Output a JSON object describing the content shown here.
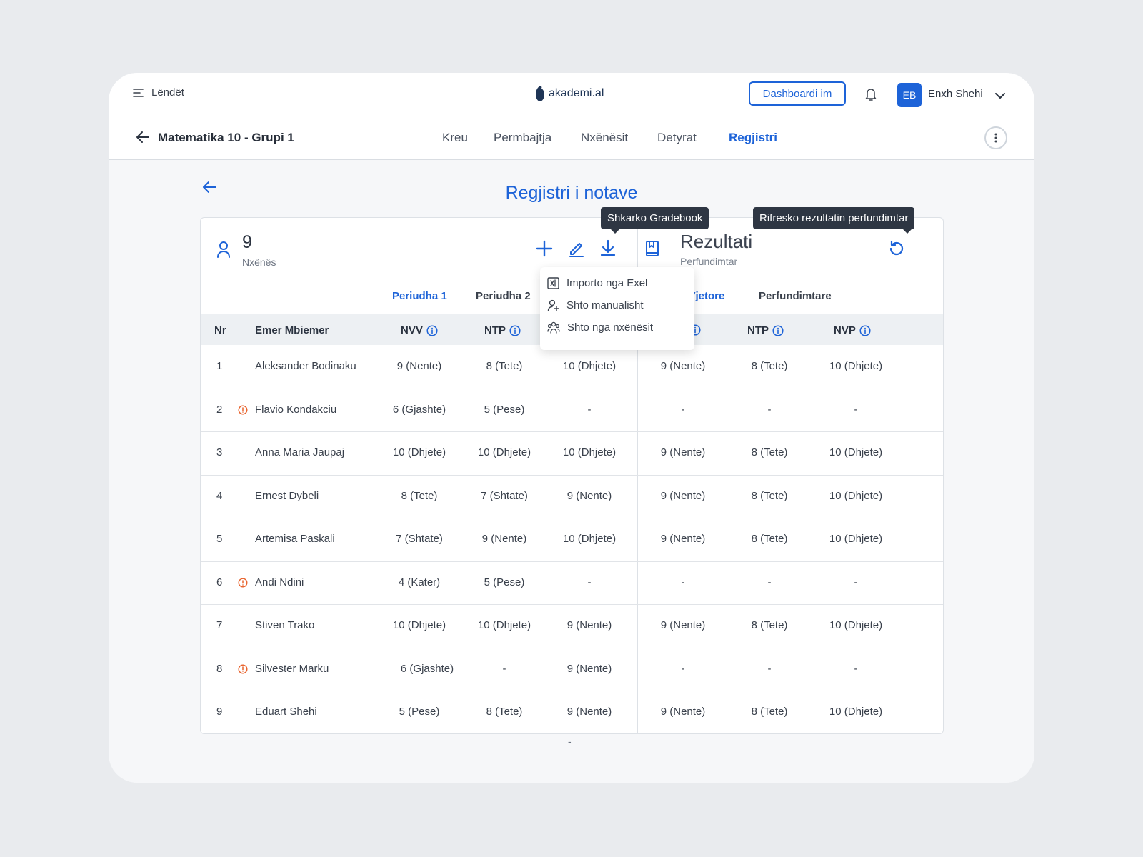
{
  "topbar": {
    "menu_label": "Lëndët",
    "logo_text": "akademi.al",
    "dashboard_button": "Dashboardi im",
    "avatar_initials": "EB",
    "user_name": "Enxh Shehi"
  },
  "subbar": {
    "course_title": "Matematika 10 - Grupi 1",
    "tabs": [
      "Kreu",
      "Permbajtja",
      "Nxënësit",
      "Detyrat",
      "Regjistri"
    ],
    "active_tab": "Regjistri"
  },
  "page": {
    "title": "Regjistri i notave"
  },
  "students_panel": {
    "count": "9",
    "count_label": "Nxënës"
  },
  "results_panel": {
    "title": "Rezultati",
    "subtitle": "Perfundimtar"
  },
  "tooltips": {
    "download": "Shkarko Gradebook",
    "refresh": "Rifresko rezultatin perfundimtar"
  },
  "add_menu": {
    "items": [
      "Importo nga Exel",
      "Shto manualisht",
      "Shto nga nxënësit"
    ]
  },
  "periods": {
    "p1": "Periudha 1",
    "p2": "Periudha 2",
    "annual_partial": "a Vjetore",
    "final": "Perfundimtare"
  },
  "headers": {
    "nr": "Nr",
    "name": "Emer Mbiemer",
    "nvv": "NVV",
    "ntp": "NTP",
    "ntp2": "NTP",
    "nvp": "NVP"
  },
  "rows": [
    {
      "nr": "1",
      "name": "Aleksander Bodinaku",
      "warn": false,
      "c": [
        "9 (Nente)",
        "8 (Tete)",
        "10 (Dhjete)",
        "9 (Nente)",
        "8 (Tete)",
        "10 (Dhjete)"
      ]
    },
    {
      "nr": "2",
      "name": "Flavio Kondakciu",
      "warn": true,
      "c": [
        "6 (Gjashte)",
        "5 (Pese)",
        "-",
        "-",
        "-",
        "-"
      ]
    },
    {
      "nr": "3",
      "name": "Anna Maria Jaupaj",
      "warn": false,
      "c": [
        "10 (Dhjete)",
        "10 (Dhjete)",
        "10 (Dhjete)",
        "9 (Nente)",
        "8 (Tete)",
        "10 (Dhjete)"
      ]
    },
    {
      "nr": "4",
      "name": "Ernest Dybeli",
      "warn": false,
      "c": [
        "8 (Tete)",
        "7 (Shtate)",
        "9 (Nente)",
        "9 (Nente)",
        "8 (Tete)",
        "10 (Dhjete)"
      ]
    },
    {
      "nr": "5",
      "name": "Artemisa Paskali",
      "warn": false,
      "c": [
        "7 (Shtate)",
        "9 (Nente)",
        "10 (Dhjete)",
        "9 (Nente)",
        "8 (Tete)",
        "10 (Dhjete)"
      ]
    },
    {
      "nr": "6",
      "name": "Andi Ndini",
      "warn": true,
      "c": [
        "4 (Kater)",
        "5 (Pese)",
        "-",
        "-",
        "-",
        "-"
      ]
    },
    {
      "nr": "7",
      "name": "Stiven Trako",
      "warn": false,
      "c": [
        "10 (Dhjete)",
        "10 (Dhjete)",
        "9 (Nente)",
        "9 (Nente)",
        "8 (Tete)",
        "10 (Dhjete)"
      ]
    },
    {
      "nr": "8",
      "name": "Silvester Marku",
      "warn": true,
      "c": [
        "6 (Gjashte)",
        "-",
        "9 (Nente)",
        "-",
        "-",
        "-"
      ]
    },
    {
      "nr": "9",
      "name": "Eduart Shehi",
      "warn": false,
      "c": [
        "5 (Pese)",
        "8 (Tete)",
        "9 (Nente)",
        "9 (Nente)",
        "8 (Tete)",
        "10 (Dhjete)"
      ]
    }
  ],
  "footer": {
    "text": "-"
  },
  "colors": {
    "accent": "#1d63d8",
    "warning": "#e8622c",
    "tooltip_bg": "#2e3643"
  }
}
